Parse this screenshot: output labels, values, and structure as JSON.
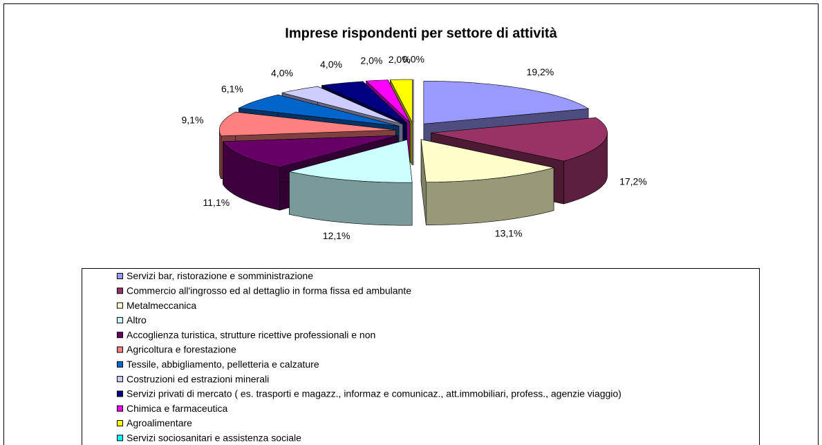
{
  "chart_data": {
    "type": "pie3d",
    "title": "Imprese rispondenti per settore di attività",
    "categories": [
      "Servizi bar, ristorazione e somministrazione",
      "Commercio all'ingrosso ed al dettaglio in forma fissa ed ambulante",
      "Metalmeccanica",
      "Altro",
      "Accoglienza turistica, strutture ricettive professionali e non",
      "Agricoltura e forestazione",
      "Tessile, abbigliamento, pelletteria e calzature",
      "Costruzioni ed estrazioni minerali",
      "Servizi privati di mercato ( es. trasporti e magazz., informaz e comunicaz., att.immobiliari, profess., agenzie viaggio)",
      "Chimica e farmaceutica",
      "Agroalimentare",
      "Servizi sociosanitari e assistenza sociale"
    ],
    "values": [
      19.2,
      17.2,
      13.1,
      12.1,
      11.1,
      9.1,
      6.1,
      4.0,
      4.0,
      2.0,
      2.0,
      0.0
    ],
    "value_labels": [
      "19,2%",
      "17,2%",
      "13,1%",
      "12,1%",
      "11,1%",
      "9,1%",
      "6,1%",
      "4,0%",
      "4,0%",
      "2,0%",
      "2,0%",
      "0,0%"
    ],
    "colors": [
      "#9999ff",
      "#993366",
      "#ffffcc",
      "#ccffff",
      "#660066",
      "#ff8080",
      "#0066cc",
      "#ccccff",
      "#000080",
      "#ff00ff",
      "#ffff00",
      "#00ffff"
    ],
    "legend": "bottom"
  }
}
